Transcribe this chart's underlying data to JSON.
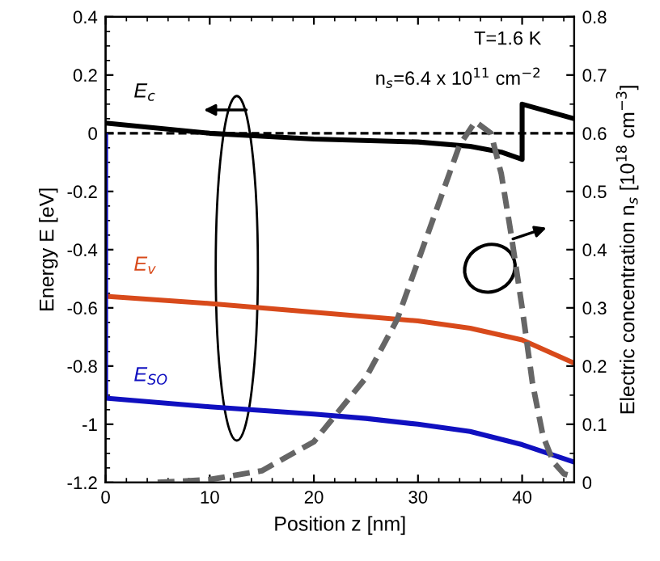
{
  "chart_data": {
    "type": "line",
    "xlabel": "Position z [nm]",
    "ylabel": "Energy E [eV]",
    "y2label": "Electric concentration n$_{s}$ [10$^{18}$ cm$^{−3}$]",
    "annotations": [
      "T=1.6 K",
      "n$_{s}$=6.4 x 10$^{11}$ cm$^{−2}$"
    ],
    "xlim": [
      0,
      45
    ],
    "xticks": [
      0,
      10,
      20,
      30,
      40
    ],
    "ylim": [
      -1.2,
      0.4
    ],
    "yticks": [
      -1.2,
      -1,
      -0.8,
      -0.6,
      -0.4,
      -0.2,
      0,
      0.2,
      0.4
    ],
    "y2lim": [
      0,
      0.8
    ],
    "y2ticks": [
      0,
      0.1,
      0.2,
      0.3,
      0.4,
      0.5,
      0.6,
      0.7,
      0.8
    ],
    "legend": false,
    "grid": false,
    "marker": "none",
    "ref_lines": [
      {
        "axis": "y",
        "value": 0,
        "color": "#000000",
        "line_style": "dashed"
      }
    ],
    "series": [
      {
        "name": "E$_{c}$",
        "color": "#000000",
        "x": [
          0,
          10,
          20,
          30,
          35,
          38,
          40,
          40,
          45
        ],
        "values": [
          0.035,
          0.0,
          -0.02,
          -0.03,
          -0.045,
          -0.065,
          -0.09,
          0.1,
          0.05
        ]
      },
      {
        "name": "E$_{v}$",
        "color": "#d84a1b",
        "x": [
          0,
          10,
          20,
          30,
          35,
          40,
          45
        ],
        "values": [
          -0.56,
          -0.585,
          -0.615,
          -0.645,
          -0.67,
          -0.71,
          -0.79
        ]
      },
      {
        "name": "E$_{SO}$",
        "color": "#1010c0",
        "x": [
          0,
          0,
          10,
          20,
          25,
          30,
          35,
          40,
          45
        ],
        "values": [
          0,
          -0.91,
          -0.94,
          -0.965,
          -0.98,
          -1.0,
          -1.025,
          -1.07,
          -1.13
        ]
      },
      {
        "color": "#666666",
        "axis": "y2",
        "line_style": "dashed",
        "x": [
          5,
          10,
          15,
          20,
          25,
          28,
          30,
          32,
          34,
          35.5,
          37,
          38,
          39,
          40,
          41,
          42,
          43,
          44,
          45
        ],
        "values": [
          0.0,
          0.005,
          0.02,
          0.07,
          0.18,
          0.28,
          0.38,
          0.48,
          0.58,
          0.62,
          0.6,
          0.53,
          0.42,
          0.3,
          0.17,
          0.08,
          0.035,
          0.015,
          0.01
        ]
      }
    ]
  }
}
